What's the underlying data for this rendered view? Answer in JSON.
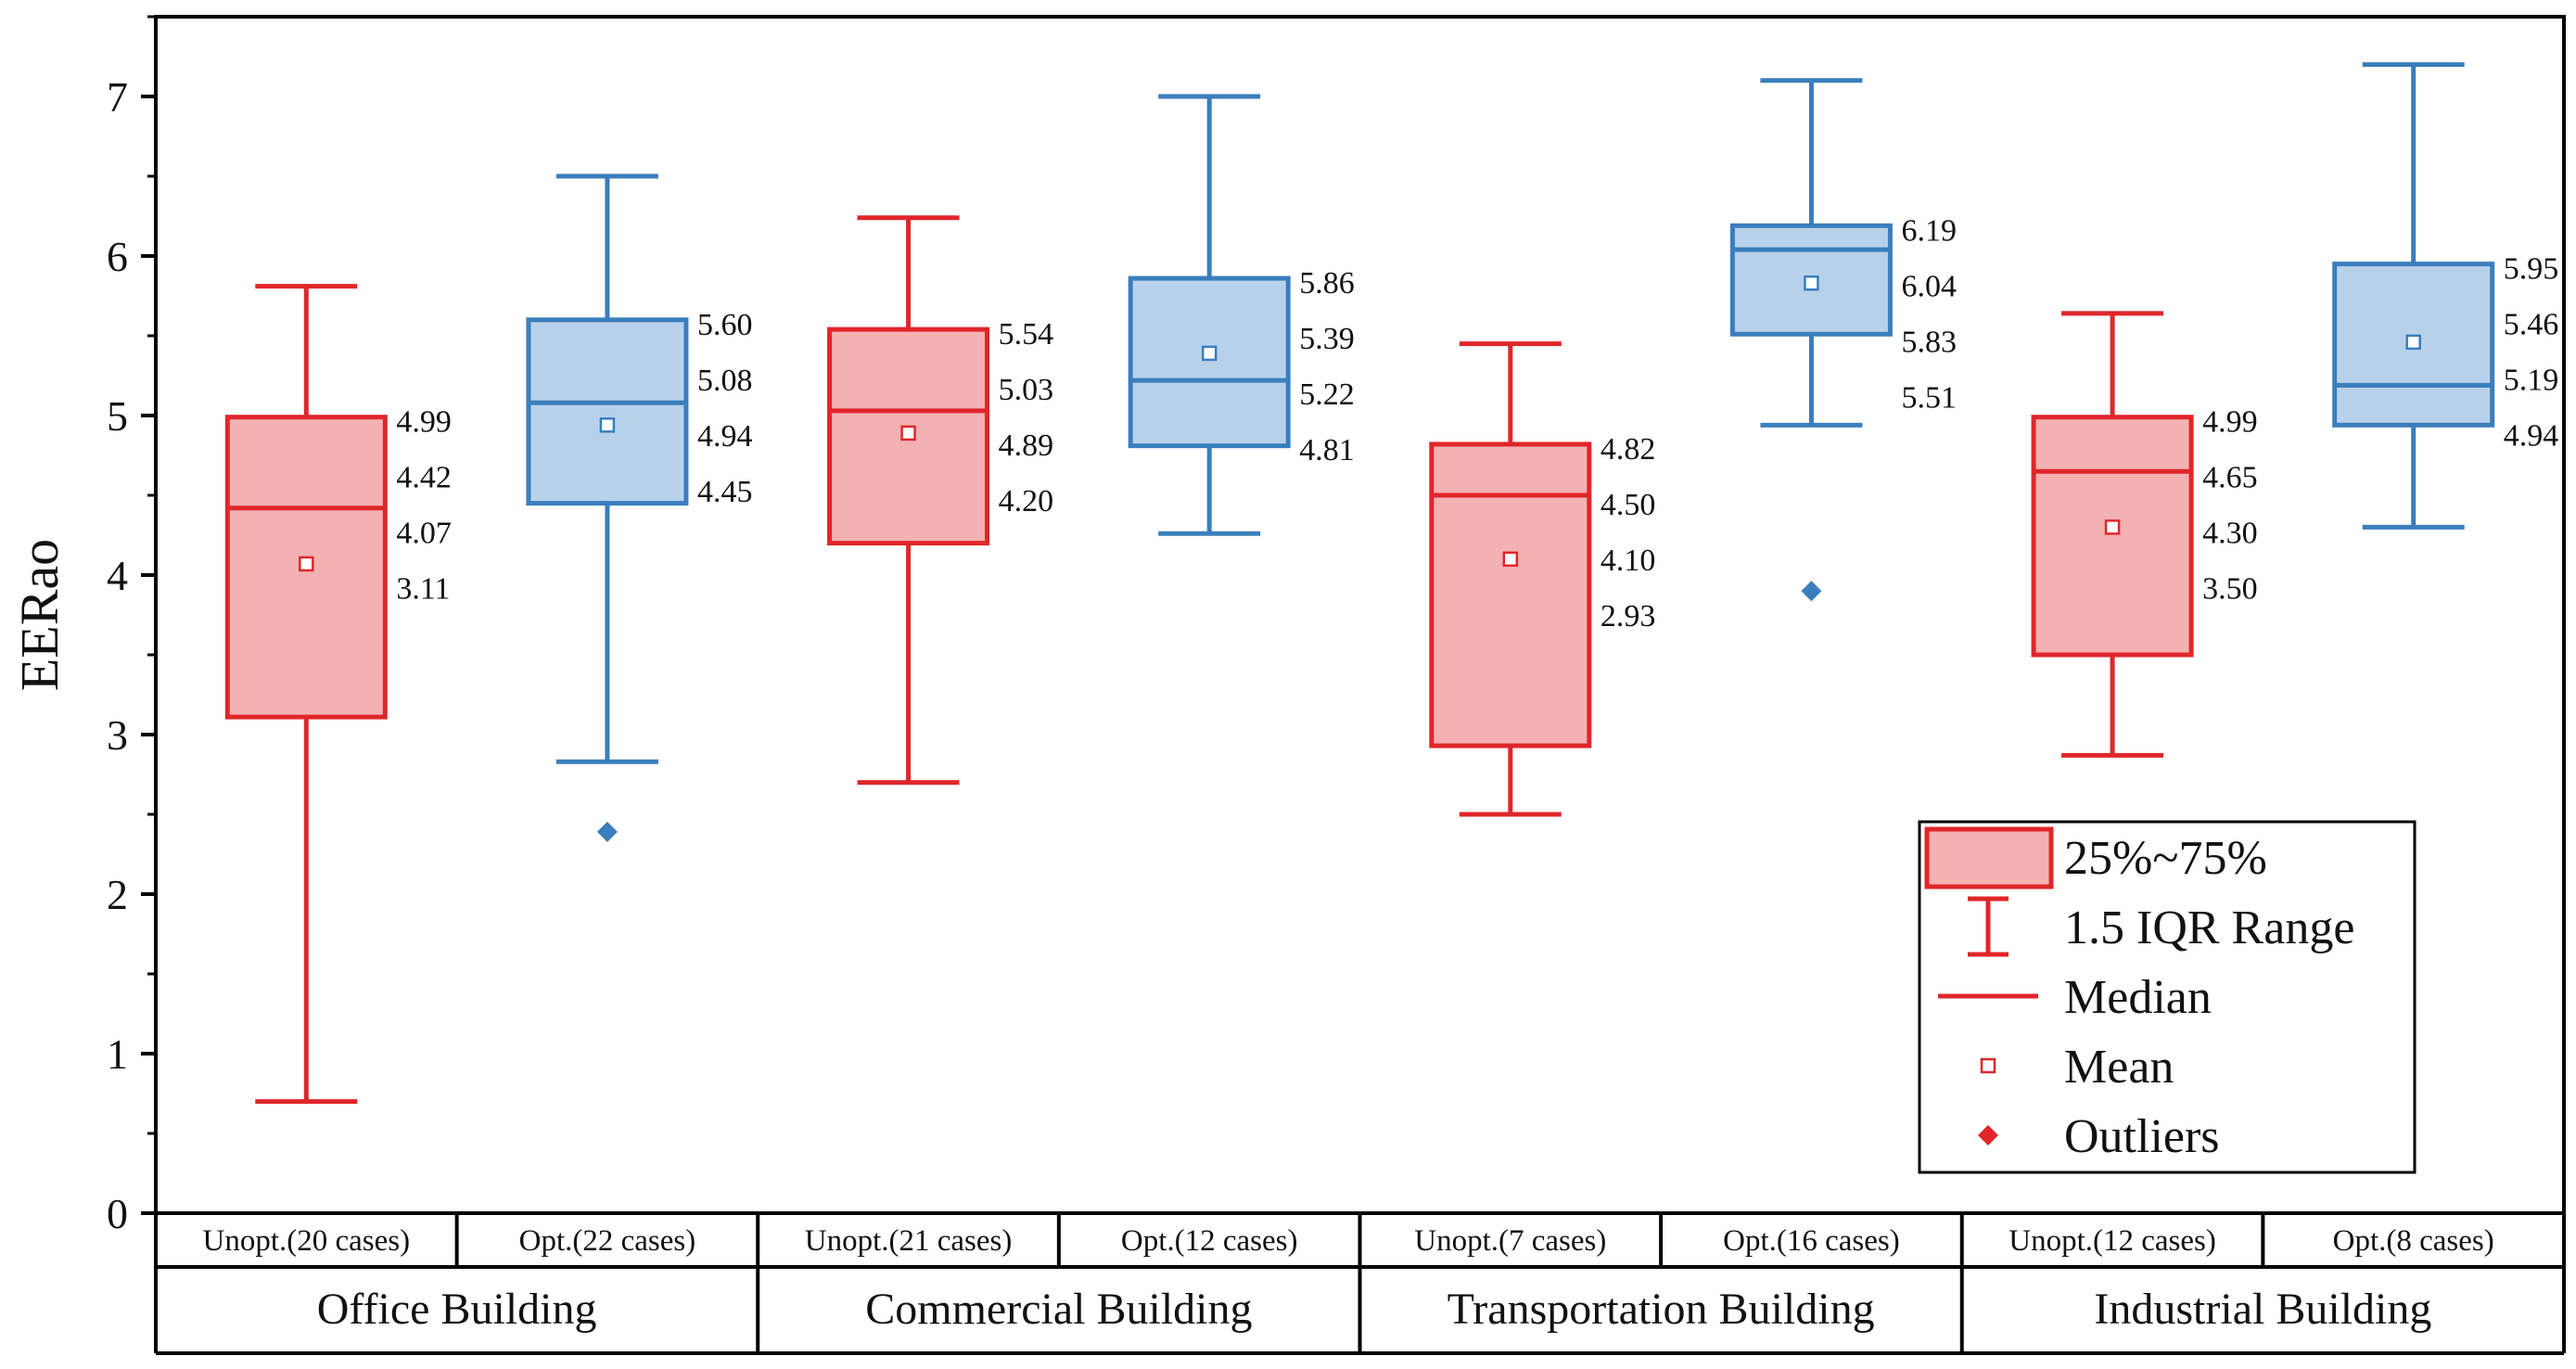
{
  "chart_data": {
    "type": "box",
    "ylabel": "EERao",
    "ylim": [
      0,
      7.5
    ],
    "yticks": [
      "0",
      "1",
      "2",
      "3",
      "4",
      "5",
      "6",
      "7"
    ],
    "groups": [
      {
        "name": "Office Building",
        "boxes": [
          {
            "label": "Unopt.(20 cases)",
            "kind": "unopt",
            "q1": 3.11,
            "median": 4.42,
            "q3": 4.99,
            "mean": 4.07,
            "whisker_low": 0.7,
            "whisker_high": 5.81,
            "outliers": [],
            "value_labels": [
              "4.99",
              "4.42",
              "4.07",
              "3.11"
            ]
          },
          {
            "label": "Opt.(22 cases)",
            "kind": "opt",
            "q1": 4.45,
            "median": 5.08,
            "q3": 5.6,
            "mean": 4.94,
            "whisker_low": 2.83,
            "whisker_high": 6.5,
            "outliers": [
              2.39
            ],
            "value_labels": [
              "5.60",
              "5.08",
              "4.94",
              "4.45"
            ]
          }
        ]
      },
      {
        "name": "Commercial Building",
        "boxes": [
          {
            "label": "Unopt.(21 cases)",
            "kind": "unopt",
            "q1": 4.2,
            "median": 5.03,
            "q3": 5.54,
            "mean": 4.89,
            "whisker_low": 2.7,
            "whisker_high": 6.24,
            "outliers": [],
            "value_labels": [
              "5.54",
              "5.03",
              "4.89",
              "4.20"
            ]
          },
          {
            "label": "Opt.(12 cases)",
            "kind": "opt",
            "q1": 4.81,
            "median": 5.22,
            "q3": 5.86,
            "mean": 5.39,
            "whisker_low": 4.26,
            "whisker_high": 7.0,
            "outliers": [],
            "value_labels": [
              "5.86",
              "5.39",
              "5.22",
              "4.81"
            ]
          }
        ]
      },
      {
        "name": "Transportation Building",
        "boxes": [
          {
            "label": "Unopt.(7 cases)",
            "kind": "unopt",
            "q1": 2.93,
            "median": 4.5,
            "q3": 4.82,
            "mean": 4.1,
            "whisker_low": 2.5,
            "whisker_high": 5.45,
            "outliers": [],
            "value_labels": [
              "4.82",
              "4.50",
              "4.10",
              "2.93"
            ]
          },
          {
            "label": "Opt.(16 cases)",
            "kind": "opt",
            "q1": 5.51,
            "median": 6.04,
            "q3": 6.19,
            "mean": 5.83,
            "whisker_low": 4.94,
            "whisker_high": 7.1,
            "outliers": [
              3.9
            ],
            "value_labels": [
              "6.19",
              "6.04",
              "5.83",
              "5.51"
            ]
          }
        ]
      },
      {
        "name": "Industrial Building",
        "boxes": [
          {
            "label": "Unopt.(12 cases)",
            "kind": "unopt",
            "q1": 3.5,
            "median": 4.65,
            "q3": 4.99,
            "mean": 4.3,
            "whisker_low": 2.87,
            "whisker_high": 5.64,
            "outliers": [],
            "value_labels": [
              "4.99",
              "4.65",
              "4.30",
              "3.50"
            ]
          },
          {
            "label": "Opt.(8 cases)",
            "kind": "opt",
            "q1": 4.94,
            "median": 5.19,
            "q3": 5.95,
            "mean": 5.46,
            "whisker_low": 4.3,
            "whisker_high": 7.2,
            "outliers": [],
            "value_labels": [
              "5.95",
              "5.46",
              "5.19",
              "4.94"
            ]
          }
        ]
      }
    ],
    "legend": {
      "position": "lower-right",
      "items": [
        {
          "key": "box",
          "label": "25%~75%"
        },
        {
          "key": "whisker",
          "label": "1.5 IQR Range"
        },
        {
          "key": "median",
          "label": "Median"
        },
        {
          "key": "mean",
          "label": "Mean"
        },
        {
          "key": "outlier",
          "label": "Outliers"
        }
      ]
    },
    "colors": {
      "unopt_stroke": "#e0262a",
      "unopt_fill": "#f3b1b3",
      "opt_stroke": "#3a7ebd",
      "opt_fill": "#b8d1ea",
      "axis": "#000000"
    }
  }
}
